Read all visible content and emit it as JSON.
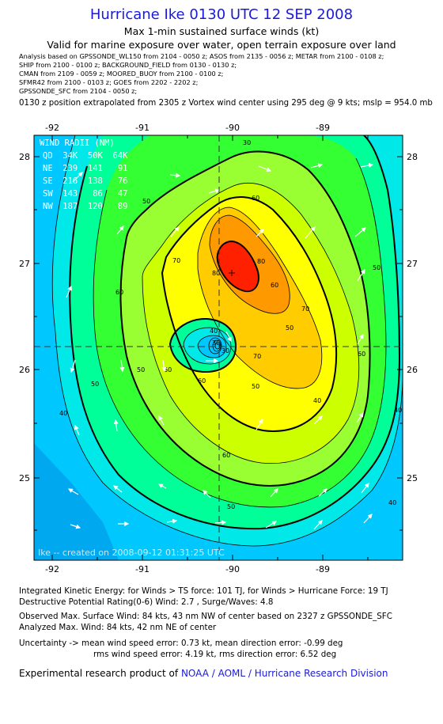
{
  "header": {
    "title": "Hurricane Ike 0130 UTC 12 SEP 2008",
    "subtitle": "Max 1-min sustained surface winds (kt)",
    "valid": "Valid for marine exposure over water, open terrain exposure over land"
  },
  "analysis_lines": [
    "Analysis based on  GPSSONDE_WL150 from 2104 - 0050 z;  ASOS from 2135 - 0056 z;  METAR from 2100 - 0108 z;",
    "SHIP from 2100 - 0100 z;  BACKGROUND_FIELD from 0130 - 0130 z;",
    "CMAN from 2109 - 0059 z;  MOORED_BUOY from 2100 - 0100 z;",
    "SFMR42 from 2100 - 0103 z;  GOES from 2202 - 2202 z;",
    "GPSSONDE_SFC from 2104 - 0050 z;"
  ],
  "extrapolation": "0130 z position extrapolated from 2305 z Vortex wind center using 295 deg @ 9 kts; mslp = 954.0 mb",
  "map": {
    "lon_ticks": [
      "-92",
      "-91",
      "-90",
      "-89"
    ],
    "lat_ticks": [
      "28",
      "27",
      "26",
      "25"
    ],
    "contour_labels": [
      "30",
      "40",
      "50",
      "60",
      "70",
      "80",
      "60",
      "50",
      "40",
      "50",
      "60",
      "70",
      "60",
      "50",
      "40",
      "50",
      "60",
      "40",
      "30",
      "30",
      "50",
      "60",
      "70",
      "80",
      "60",
      "50",
      "40"
    ],
    "wind_radii": {
      "title": "WIND RADII (NM)",
      "header": "QD  34K  50K  64K",
      "rows": [
        "NE  239  141   91",
        "SE  216  138   76",
        "SW  143   86   47",
        "NW  187  120   89"
      ]
    },
    "watermark": "Ike -- created on 2008-09-12 01:31:25 UTC",
    "colors": {
      "fill_outer": "#00c8ff",
      "mid": "#00ff80",
      "inner": "#ffff00",
      "core": "#ff2000"
    }
  },
  "footer": {
    "ike": "Integrated Kinetic Energy:  for Winds > TS force: 101 TJ,  for Winds > Hurricane Force: 19 TJ",
    "destructive": "Destructive Potential Rating(0-6)   Wind: 2.7 , Surge/Waves: 4.8",
    "observed": "Observed Max. Surface Wind: 84 kts, 43 nm NW of center based on 2327 z GPSSONDE_SFC",
    "analyzed": "Analyzed Max. Wind: 84 kts, 42 nm NE of center",
    "uncertainty1": "Uncertainty -> mean wind speed error: 0.73 kt,   mean direction error:  -0.99 deg",
    "uncertainty2": "rms wind speed error: 4.19 kt,   rms direction error: 6.52 deg",
    "credit_prefix": "Experimental research product of",
    "credit_org": "NOAA / AOML / Hurricane Research Division"
  }
}
